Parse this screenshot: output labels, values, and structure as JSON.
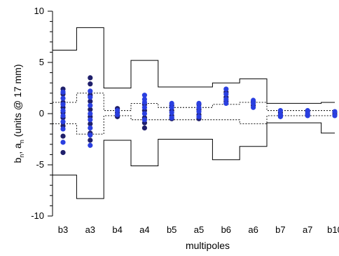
{
  "chart_data": {
    "type": "scatter",
    "xlabel": "multipoles",
    "ylabel_main": "b",
    "ylabel_sub1": "n",
    "ylabel_mid": ", a",
    "ylabel_sub2": "n",
    "ylabel_rest": " (units @ 17 mm)",
    "categories": [
      "b3",
      "a3",
      "b4",
      "a4",
      "b5",
      "a5",
      "b6",
      "a6",
      "b7",
      "a7",
      "b10"
    ],
    "ylim": [
      -10,
      10
    ],
    "yticks": [
      10,
      5,
      0,
      -5,
      -10
    ],
    "grid": false,
    "series": [
      {
        "color": "#1f1f6b",
        "points": [
          [
            "b3",
            2.4
          ],
          [
            "b3",
            1.9
          ],
          [
            "b3",
            1.1
          ],
          [
            "b3",
            0.6
          ],
          [
            "b3",
            0.1
          ],
          [
            "b3",
            -0.4
          ],
          [
            "b3",
            -1.2
          ],
          [
            "b3",
            -2.2
          ],
          [
            "b3",
            -3.8
          ],
          [
            "a3",
            3.5
          ],
          [
            "a3",
            2.9
          ],
          [
            "a3",
            1.8
          ],
          [
            "a3",
            1.2
          ],
          [
            "a3",
            0.4
          ],
          [
            "a3",
            -0.3
          ],
          [
            "a3",
            -1.0
          ],
          [
            "a3",
            -1.9
          ],
          [
            "a3",
            -2.6
          ],
          [
            "b4",
            0.5
          ],
          [
            "b4",
            0.1
          ],
          [
            "b4",
            -0.3
          ],
          [
            "a4",
            0.9
          ],
          [
            "a4",
            0.3
          ],
          [
            "a4",
            -0.4
          ],
          [
            "a4",
            -0.9
          ],
          [
            "a4",
            -1.4
          ],
          [
            "b5",
            0.8
          ],
          [
            "b5",
            0.3
          ],
          [
            "b5",
            -0.2
          ],
          [
            "b5",
            -0.5
          ],
          [
            "a5",
            0.9
          ],
          [
            "a5",
            0.4
          ],
          [
            "a5",
            -0.1
          ],
          [
            "a5",
            -0.5
          ],
          [
            "b6",
            2.1
          ],
          [
            "b6",
            1.6
          ],
          [
            "b6",
            1.2
          ],
          [
            "a6",
            1.2
          ],
          [
            "a6",
            0.8
          ],
          [
            "b7",
            0.1
          ],
          [
            "b7",
            -0.2
          ],
          [
            "a7",
            0.2
          ],
          [
            "a7",
            -0.1
          ],
          [
            "b10",
            0.1
          ],
          [
            "b10",
            -0.1
          ]
        ]
      },
      {
        "color": "#2a3fe0",
        "points": [
          [
            "b3",
            2.1
          ],
          [
            "b3",
            1.5
          ],
          [
            "b3",
            0.9
          ],
          [
            "b3",
            0.3
          ],
          [
            "b3",
            -0.2
          ],
          [
            "b3",
            -0.8
          ],
          [
            "b3",
            -1.5
          ],
          [
            "b3",
            -2.8
          ],
          [
            "a3",
            2.2
          ],
          [
            "a3",
            1.6
          ],
          [
            "a3",
            0.8
          ],
          [
            "a3",
            0.0
          ],
          [
            "a3",
            -0.6
          ],
          [
            "a3",
            -1.4
          ],
          [
            "a3",
            -2.1
          ],
          [
            "a3",
            -3.1
          ],
          [
            "b4",
            0.3
          ],
          [
            "b4",
            -0.1
          ],
          [
            "a4",
            1.8
          ],
          [
            "a4",
            1.4
          ],
          [
            "a4",
            1.1
          ],
          [
            "a4",
            0.6
          ],
          [
            "a4",
            0.0
          ],
          [
            "a4",
            -0.6
          ],
          [
            "b5",
            1.0
          ],
          [
            "b5",
            0.6
          ],
          [
            "b5",
            0.1
          ],
          [
            "b5",
            -0.4
          ],
          [
            "a5",
            1.0
          ],
          [
            "a5",
            0.6
          ],
          [
            "a5",
            0.2
          ],
          [
            "a5",
            -0.3
          ],
          [
            "b6",
            2.4
          ],
          [
            "b6",
            1.9
          ],
          [
            "b6",
            1.4
          ],
          [
            "b6",
            1.0
          ],
          [
            "a6",
            1.3
          ],
          [
            "a6",
            1.0
          ],
          [
            "a6",
            0.6
          ],
          [
            "b7",
            0.3
          ],
          [
            "b7",
            -0.1
          ],
          [
            "b7",
            -0.3
          ],
          [
            "a7",
            0.3
          ],
          [
            "a7",
            0.0
          ],
          [
            "a7",
            -0.2
          ],
          [
            "b10",
            0.2
          ],
          [
            "b10",
            -0.2
          ]
        ]
      }
    ],
    "outer_envelope": {
      "upper": [
        6.2,
        8.4,
        2.5,
        5.2,
        2.6,
        2.6,
        3.0,
        3.4,
        1.0,
        1.0,
        1.1
      ],
      "lower": [
        -6.0,
        -8.3,
        -2.6,
        -5.1,
        -2.5,
        -2.5,
        -4.5,
        -3.2,
        -0.9,
        -0.9,
        -1.9
      ]
    },
    "inner_envelope": {
      "upper": [
        1.1,
        2.0,
        0.3,
        1.0,
        0.6,
        0.6,
        0.9,
        1.1,
        0.3,
        0.3,
        0.3
      ],
      "lower": [
        -1.0,
        -2.0,
        -0.2,
        -0.6,
        -0.6,
        -0.6,
        -0.6,
        -1.0,
        -0.2,
        -0.2,
        -0.2
      ]
    }
  }
}
